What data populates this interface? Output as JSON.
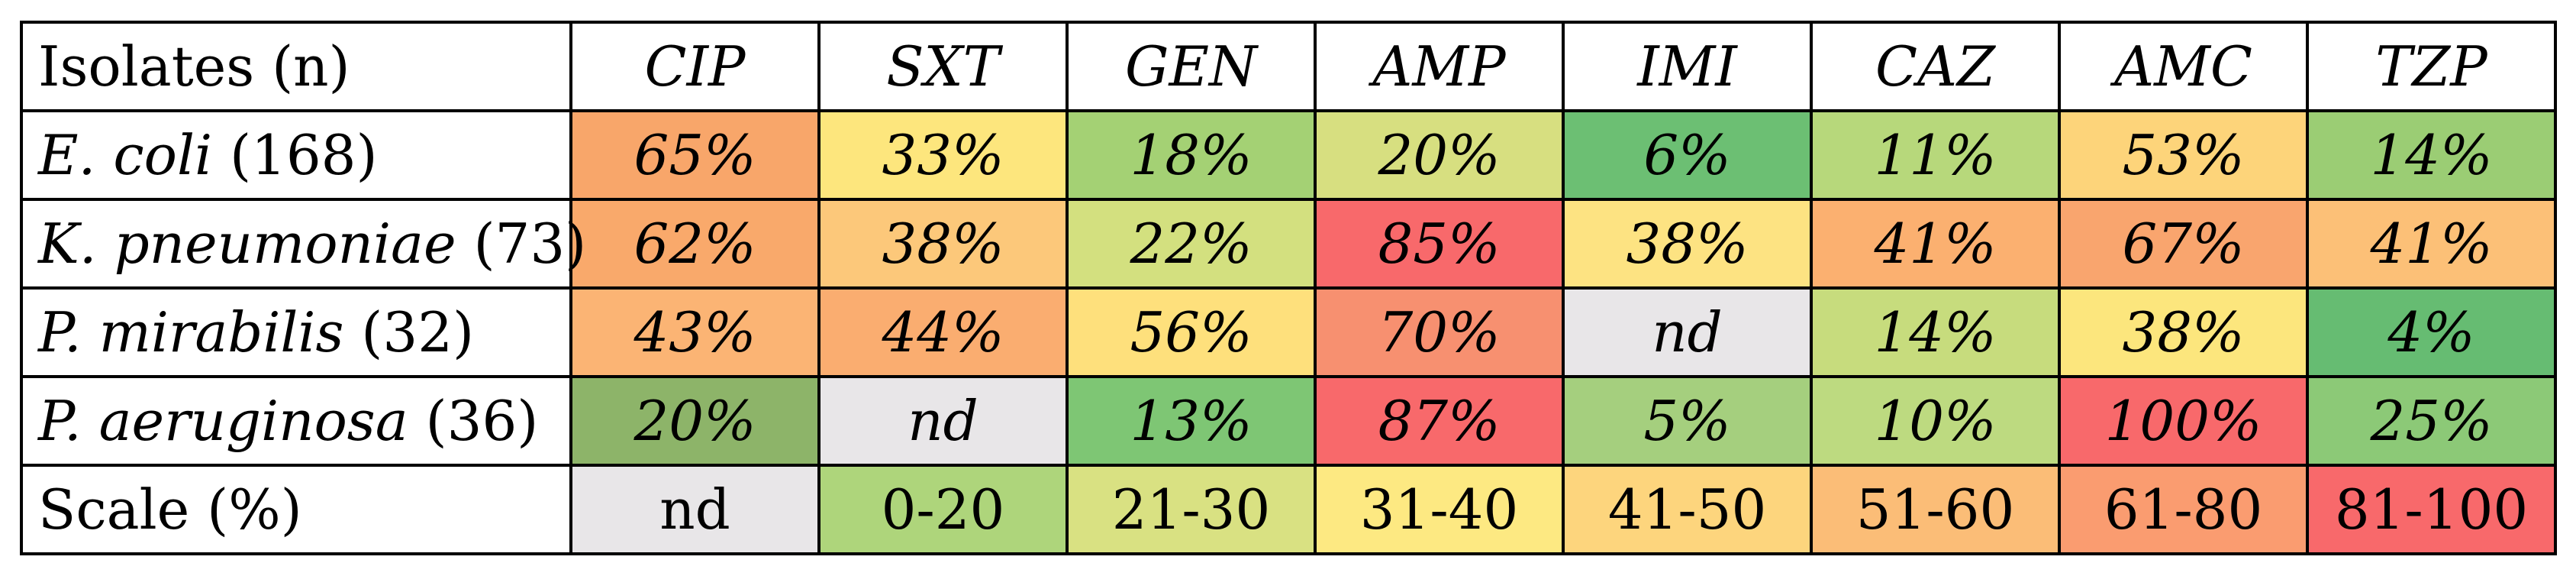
{
  "header": {
    "first": "Isolates (n)",
    "drugs": [
      "CIP",
      "SXT",
      "GEN",
      "AMP",
      "IMI",
      "CAZ",
      "AMC",
      "TZP"
    ]
  },
  "rows": [
    {
      "species": "E. coli",
      "count": " (168)",
      "cells": [
        {
          "v": "65%",
          "c": "#f8a66a"
        },
        {
          "v": "33%",
          "c": "#fde67d"
        },
        {
          "v": "18%",
          "c": "#a4d174"
        },
        {
          "v": "20%",
          "c": "#d7df80"
        },
        {
          "v": "6%",
          "c": "#6cbf73"
        },
        {
          "v": "11%",
          "c": "#b7d87b"
        },
        {
          "v": "53%",
          "c": "#fdd47a"
        },
        {
          "v": "14%",
          "c": "#9bcd74"
        }
      ]
    },
    {
      "species": "K. pneumoniae",
      "count": " (73)",
      "cells": [
        {
          "v": "62%",
          "c": "#f9a96b"
        },
        {
          "v": "38%",
          "c": "#fcc87a"
        },
        {
          "v": "22%",
          "c": "#d3e07f"
        },
        {
          "v": "85%",
          "c": "#f8696b"
        },
        {
          "v": "38%",
          "c": "#fde382"
        },
        {
          "v": "41%",
          "c": "#fbb070"
        },
        {
          "v": "67%",
          "c": "#f9a56e"
        },
        {
          "v": "41%",
          "c": "#fcc077"
        }
      ]
    },
    {
      "species": "P. mirabilis",
      "count": " (32)",
      "cells": [
        {
          "v": "43%",
          "c": "#fbb474"
        },
        {
          "v": "44%",
          "c": "#faad70"
        },
        {
          "v": "56%",
          "c": "#fee07c"
        },
        {
          "v": "70%",
          "c": "#f79070"
        },
        {
          "v": "nd",
          "c": "#e8e6e8"
        },
        {
          "v": "14%",
          "c": "#c7dc7d"
        },
        {
          "v": "38%",
          "c": "#fce67d"
        },
        {
          "v": "4%",
          "c": "#66bc72"
        }
      ]
    },
    {
      "species": "P. aeruginosa",
      "count": " (36)",
      "cells": [
        {
          "v": "20%",
          "c": "#8db469"
        },
        {
          "v": "nd",
          "c": "#e8e6e8"
        },
        {
          "v": "13%",
          "c": "#7ec674"
        },
        {
          "v": "87%",
          "c": "#f8696b"
        },
        {
          "v": "5%",
          "c": "#a5cf7e"
        },
        {
          "v": "10%",
          "c": "#bdda80"
        },
        {
          "v": "100%",
          "c": "#f8696b"
        },
        {
          "v": "25%",
          "c": "#8cc977"
        }
      ]
    }
  ],
  "scale": {
    "label": "Scale (%)",
    "cells": [
      {
        "v": "nd",
        "c": "#e8e6e8"
      },
      {
        "v": "0-20",
        "c": "#aed57b"
      },
      {
        "v": "21-30",
        "c": "#d9e182"
      },
      {
        "v": "31-40",
        "c": "#fde982"
      },
      {
        "v": "41-50",
        "c": "#fdd57d"
      },
      {
        "v": "51-60",
        "c": "#fbbd77"
      },
      {
        "v": "61-80",
        "c": "#fa9c70"
      },
      {
        "v": "81-100",
        "c": "#f8696b"
      }
    ]
  }
}
